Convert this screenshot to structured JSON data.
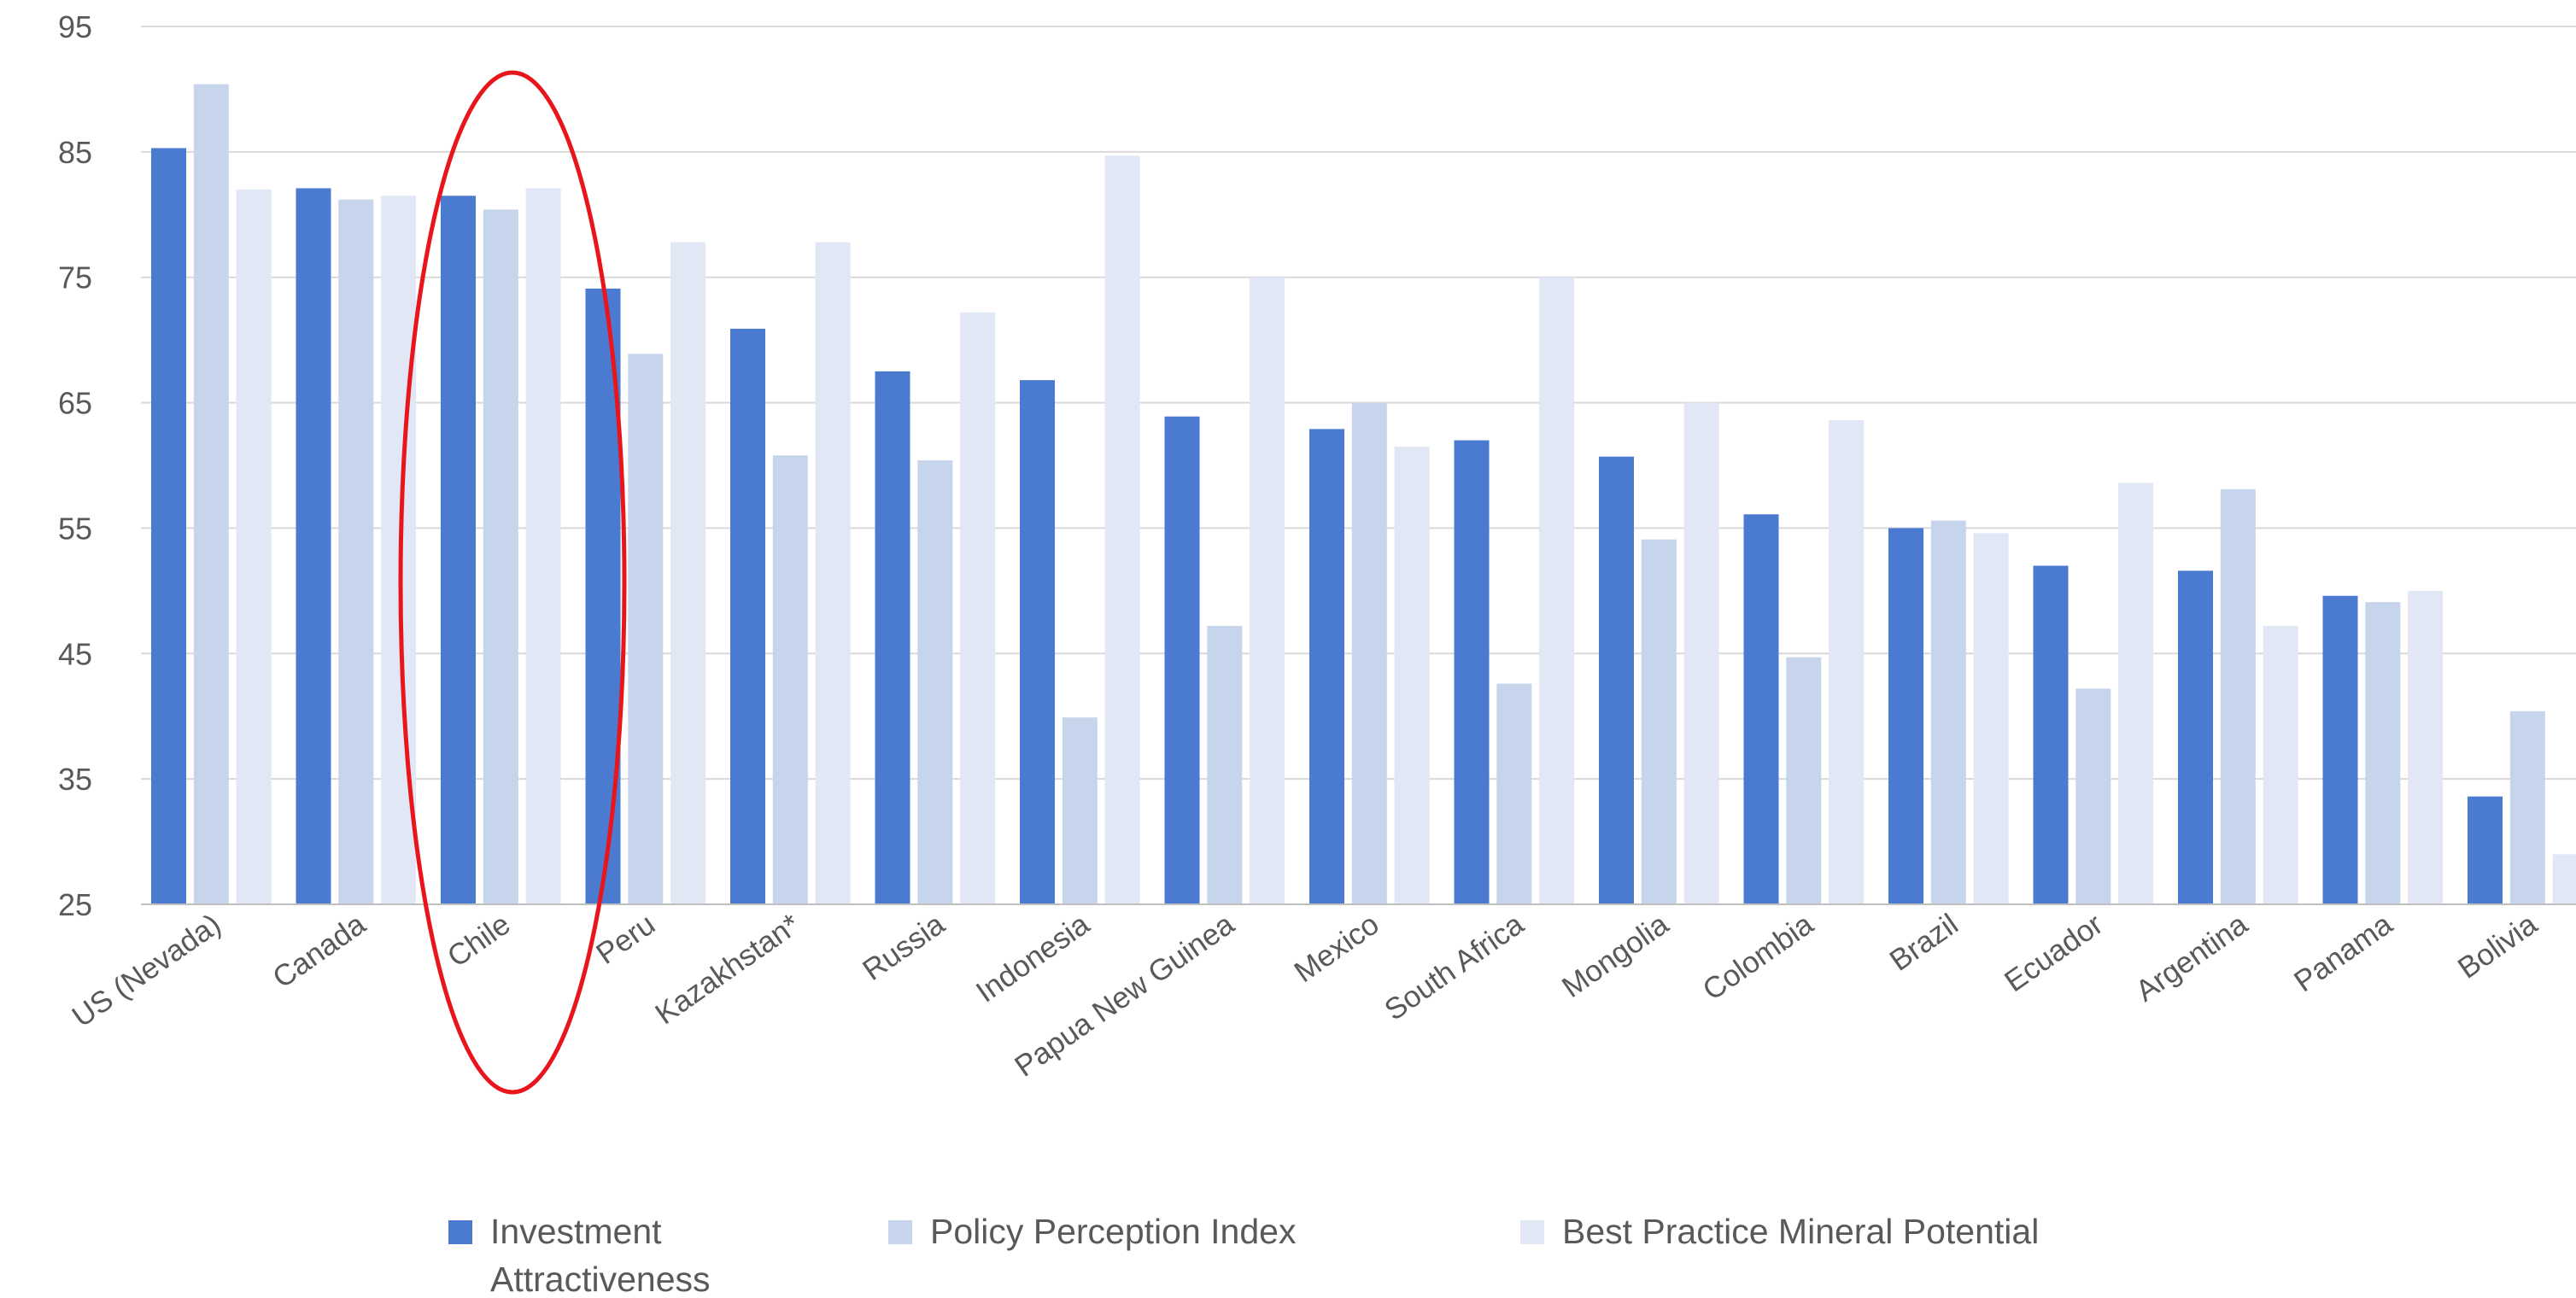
{
  "chart_data": {
    "type": "bar",
    "title": "",
    "xlabel": "",
    "ylabel": "",
    "ylim": [
      25,
      95
    ],
    "yticks": [
      25,
      35,
      45,
      55,
      65,
      75,
      85,
      95
    ],
    "grid": true,
    "legend_position": "bottom",
    "categories": [
      "US (Nevada)",
      "Canada",
      "Chile",
      "Peru",
      "Kazakhstan*",
      "Russia",
      "Indonesia",
      "Papua New Guinea",
      "Mexico",
      "South Africa",
      "Mongolia",
      "Colombia",
      "Brazil",
      "Ecuador",
      "Argentina",
      "Panama",
      "Bolivia"
    ],
    "series": [
      {
        "name": "Investment Attractiveness",
        "legend_lines": [
          "Investment",
          "Attractiveness"
        ],
        "color": "#4a7bd0",
        "values": [
          85.3,
          82.1,
          81.5,
          74.1,
          70.9,
          67.5,
          66.8,
          63.9,
          62.9,
          62.0,
          60.7,
          56.1,
          55.0,
          52.0,
          51.6,
          49.6,
          33.6
        ]
      },
      {
        "name": "Policy Perception Index",
        "legend_lines": [
          "Policy Perception Index"
        ],
        "color": "#c6d4ec",
        "values": [
          90.4,
          81.2,
          80.4,
          68.9,
          60.8,
          60.4,
          39.9,
          47.2,
          65.0,
          42.6,
          54.1,
          44.7,
          55.6,
          42.2,
          58.1,
          49.1,
          40.4
        ]
      },
      {
        "name": "Best Practice Mineral Potential",
        "legend_lines": [
          "Best Practice Mineral Potential"
        ],
        "color": "#e1e7f4",
        "values": [
          82.0,
          81.5,
          82.1,
          77.8,
          77.8,
          72.2,
          84.7,
          75.0,
          61.5,
          75.0,
          65.0,
          63.6,
          54.6,
          58.6,
          47.2,
          50.0,
          29.0
        ]
      }
    ],
    "annotations": [
      {
        "type": "ellipse",
        "target_category": "Chile",
        "color": "#e8151b"
      }
    ]
  }
}
